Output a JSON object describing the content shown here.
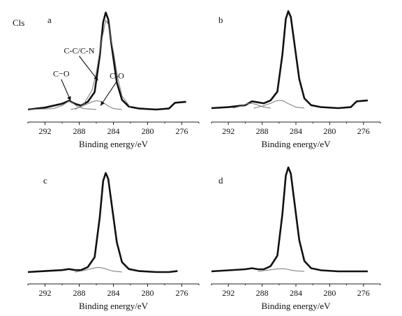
{
  "figure_label": "Cls",
  "chart_data": [
    {
      "type": "line",
      "panel": "a",
      "xlabel": "Binding energy/eV",
      "ylabel": "",
      "xlim": [
        294,
        274
      ],
      "x_reversed": true,
      "xticks": [
        292,
        288,
        284,
        280,
        276
      ],
      "series": [
        {
          "x": [
            294,
            292,
            290,
            289.2,
            288.5,
            287.8,
            287,
            286.2,
            285.6,
            285.2,
            284.9,
            284.6,
            284.2,
            283.6,
            283,
            282.2,
            281,
            279,
            277.5,
            276.8,
            275.5
          ],
          "y": [
            0.0,
            0.02,
            0.06,
            0.09,
            0.06,
            0.04,
            0.08,
            0.18,
            0.55,
            0.9,
            1.0,
            0.93,
            0.65,
            0.28,
            0.1,
            0.03,
            0.01,
            0.0,
            0.01,
            0.07,
            0.08
          ]
        },
        {
          "x": [
            294,
            291,
            290,
            289.5,
            289.2,
            288.8,
            288.2,
            287.5,
            286
          ],
          "y": [
            0.0,
            0.01,
            0.04,
            0.07,
            0.085,
            0.07,
            0.03,
            0.01,
            0.0
          ]
        },
        {
          "x": [
            289,
            288,
            287,
            286.5,
            286,
            285.5,
            285,
            284.5,
            284,
            283
          ],
          "y": [
            0.0,
            0.02,
            0.06,
            0.08,
            0.09,
            0.085,
            0.06,
            0.03,
            0.01,
            0.0
          ]
        },
        {
          "x": [
            288.5,
            287.5,
            286.5,
            286,
            285.5,
            285,
            284.9,
            284.6,
            284,
            283.5,
            283,
            282
          ],
          "y": [
            0.0,
            0.05,
            0.2,
            0.38,
            0.65,
            0.88,
            0.92,
            0.88,
            0.6,
            0.33,
            0.14,
            0.02
          ]
        }
      ],
      "annotations": [
        {
          "text": "C-C/C-N",
          "x": 288.0,
          "y": 0.58,
          "points_to": [
            285.8,
            0.3
          ]
        },
        {
          "text": "C−O",
          "x": 290.1,
          "y": 0.34,
          "points_to": [
            289.0,
            0.09
          ]
        },
        {
          "text": "C-O",
          "x": 283.6,
          "y": 0.32,
          "points_to": [
            285.5,
            0.04
          ]
        }
      ]
    },
    {
      "type": "line",
      "panel": "b",
      "xlabel": "Binding energy/eV",
      "ylabel": "",
      "xlim": [
        294,
        274
      ],
      "x_reversed": true,
      "xticks": [
        292,
        288,
        284,
        280,
        276
      ],
      "series": [
        {
          "x": [
            294,
            292,
            290,
            289.2,
            288.5,
            287.8,
            287,
            286.2,
            285.6,
            285.2,
            284.9,
            284.6,
            284.2,
            283.6,
            283,
            282.2,
            281,
            279,
            277.5,
            276.8,
            275.5
          ],
          "y": [
            0.0,
            0.01,
            0.03,
            0.07,
            0.06,
            0.05,
            0.08,
            0.17,
            0.55,
            0.92,
            1.0,
            0.94,
            0.68,
            0.3,
            0.1,
            0.03,
            0.01,
            0.0,
            0.01,
            0.07,
            0.08
          ]
        },
        {
          "x": [
            289,
            288,
            287,
            286.5,
            286,
            285.5,
            285,
            284.5,
            284,
            283
          ],
          "y": [
            0.0,
            0.02,
            0.05,
            0.07,
            0.08,
            0.075,
            0.05,
            0.03,
            0.01,
            0.0
          ]
        },
        {
          "x": [
            291.5,
            290.5,
            289.8,
            289.3,
            288.8,
            288,
            287
          ],
          "y": [
            0.0,
            0.02,
            0.045,
            0.05,
            0.04,
            0.015,
            0.0
          ]
        }
      ]
    },
    {
      "type": "line",
      "panel": "c",
      "xlabel": "Binding energy/eV",
      "ylabel": "",
      "xlim": [
        294,
        274
      ],
      "x_reversed": true,
      "xticks": [
        292,
        288,
        284,
        280,
        276
      ],
      "series": [
        {
          "x": [
            294,
            292,
            290,
            289.2,
            288.5,
            287.8,
            287,
            286.2,
            285.6,
            285.2,
            284.9,
            284.6,
            284.2,
            283.6,
            283,
            282.2,
            281,
            279,
            277.5,
            276.5
          ],
          "y": [
            0.0,
            0.01,
            0.02,
            0.03,
            0.02,
            0.02,
            0.05,
            0.15,
            0.55,
            0.92,
            1.0,
            0.94,
            0.68,
            0.3,
            0.1,
            0.03,
            0.01,
            0.0,
            0.0,
            0.01
          ]
        },
        {
          "x": [
            288.5,
            287.5,
            286.5,
            286,
            285.5,
            285,
            284.5,
            284,
            283
          ],
          "y": [
            0.0,
            0.015,
            0.035,
            0.045,
            0.045,
            0.035,
            0.02,
            0.01,
            0.0
          ]
        }
      ]
    },
    {
      "type": "line",
      "panel": "d",
      "xlabel": "Binding energy/eV",
      "ylabel": "",
      "xlim": [
        294,
        274
      ],
      "x_reversed": true,
      "xticks": [
        292,
        288,
        284,
        280,
        276
      ],
      "series": [
        {
          "x": [
            294,
            292,
            290,
            289.2,
            288.5,
            287.8,
            287,
            286.2,
            285.6,
            285.2,
            284.9,
            284.6,
            284.2,
            283.6,
            283,
            282.2,
            281,
            279,
            277.5,
            275.5
          ],
          "y": [
            0.0,
            0.01,
            0.02,
            0.03,
            0.02,
            0.02,
            0.05,
            0.15,
            0.55,
            0.92,
            1.0,
            0.94,
            0.68,
            0.3,
            0.1,
            0.03,
            0.01,
            0.0,
            0.0,
            0.0
          ]
        },
        {
          "x": [
            288.5,
            287.5,
            286.5,
            286,
            285.5,
            285,
            284.5,
            284,
            283
          ],
          "y": [
            0.0,
            0.01,
            0.02,
            0.025,
            0.025,
            0.02,
            0.01,
            0.005,
            0.0
          ]
        }
      ]
    }
  ]
}
